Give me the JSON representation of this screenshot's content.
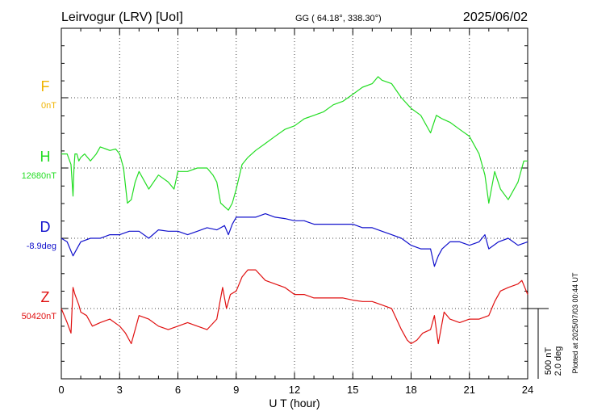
{
  "header": {
    "station": "Leirvogur (LRV)  [UoI]",
    "coords": "GG ( 64.18°, 338.30°)",
    "date": "2025/06/02"
  },
  "side_note": "Plotted at 2025/07/03 00:44 UT",
  "scale_bar": {
    "nt": "500 nT",
    "deg": "2.0 deg"
  },
  "chart_data": {
    "type": "line",
    "xlabel": "U T (hour)",
    "xlim": [
      0,
      24
    ],
    "xticks": [
      "0",
      "3",
      "6",
      "9",
      "12",
      "15",
      "18",
      "21",
      "24"
    ],
    "grid": true,
    "scale": {
      "nT_per_bar": 500,
      "deg_per_bar": 2.0
    },
    "series": [
      {
        "name": "F",
        "baseline_label": "0nT",
        "color": "#f0b400",
        "x": [],
        "y": []
      },
      {
        "name": "H",
        "baseline_label": "12680nT",
        "color": "#22dd22",
        "x": [
          0,
          0.3,
          0.5,
          0.6,
          0.65,
          0.7,
          0.8,
          0.9,
          1.0,
          1.2,
          1.5,
          1.8,
          2.0,
          2.3,
          2.5,
          2.8,
          3.0,
          3.2,
          3.4,
          3.6,
          3.8,
          4.0,
          4.5,
          5.0,
          5.5,
          5.8,
          6.0,
          6.5,
          7.0,
          7.5,
          7.8,
          8.0,
          8.2,
          8.4,
          8.6,
          8.8,
          9.0,
          9.3,
          9.6,
          10.0,
          10.5,
          11.0,
          11.5,
          12.0,
          12.5,
          13.0,
          13.5,
          14.0,
          14.5,
          15.0,
          15.5,
          16.0,
          16.3,
          16.5,
          17.0,
          17.5,
          18.0,
          18.5,
          19.0,
          19.3,
          19.6,
          20.0,
          20.5,
          21.0,
          21.5,
          21.8,
          22.0,
          22.3,
          22.6,
          23.0,
          23.5,
          23.8,
          24.0
        ],
        "y": [
          20,
          20,
          5,
          -40,
          0,
          20,
          20,
          10,
          15,
          20,
          10,
          20,
          30,
          27,
          25,
          27,
          20,
          0,
          -50,
          -45,
          -20,
          -5,
          -30,
          -10,
          -20,
          -30,
          -5,
          -5,
          0,
          0,
          -10,
          -20,
          -50,
          -55,
          -60,
          -50,
          -30,
          5,
          15,
          25,
          35,
          45,
          55,
          60,
          70,
          75,
          80,
          90,
          95,
          105,
          115,
          120,
          130,
          125,
          120,
          100,
          85,
          75,
          50,
          75,
          70,
          65,
          55,
          45,
          20,
          -10,
          -50,
          -5,
          -30,
          -45,
          -20,
          10,
          10
        ]
      },
      {
        "name": "D",
        "baseline_label": "-8.9deg",
        "color": "#1010cc",
        "x": [
          0,
          0.3,
          0.6,
          0.8,
          1.0,
          1.5,
          2.0,
          2.5,
          3.0,
          3.5,
          4.0,
          4.5,
          5.0,
          5.5,
          6.0,
          6.5,
          7.0,
          7.5,
          8.0,
          8.4,
          8.6,
          8.8,
          9.0,
          9.5,
          10.0,
          10.5,
          11.0,
          11.5,
          12.0,
          12.5,
          13.0,
          13.5,
          14.0,
          14.5,
          15.0,
          15.5,
          16.0,
          16.5,
          17.0,
          17.5,
          18.0,
          18.5,
          19.0,
          19.2,
          19.4,
          19.6,
          20.0,
          20.5,
          21.0,
          21.5,
          21.8,
          22.0,
          22.5,
          23.0,
          23.5,
          24.0
        ],
        "y": [
          0,
          -5,
          -25,
          -15,
          -5,
          0,
          0,
          5,
          5,
          10,
          10,
          0,
          12,
          10,
          10,
          5,
          10,
          15,
          12,
          18,
          5,
          20,
          30,
          30,
          30,
          35,
          30,
          28,
          25,
          25,
          20,
          20,
          20,
          20,
          20,
          15,
          15,
          10,
          5,
          0,
          -10,
          -15,
          -15,
          -40,
          -25,
          -15,
          -5,
          -5,
          -10,
          -5,
          5,
          -15,
          -5,
          0,
          -10,
          -5
        ]
      },
      {
        "name": "Z",
        "baseline_label": "50420nT",
        "color": "#e01010",
        "x": [
          0,
          0.3,
          0.5,
          0.6,
          0.7,
          0.9,
          1.0,
          1.3,
          1.6,
          2.0,
          2.5,
          3.0,
          3.3,
          3.6,
          4.0,
          4.5,
          5.0,
          5.5,
          6.0,
          6.5,
          7.0,
          7.5,
          8.0,
          8.3,
          8.5,
          8.7,
          9.0,
          9.3,
          9.6,
          10.0,
          10.5,
          11.0,
          11.5,
          12.0,
          12.5,
          13.0,
          13.5,
          14.0,
          14.5,
          15.0,
          15.5,
          16.0,
          16.5,
          17.0,
          17.5,
          17.8,
          18.0,
          18.3,
          18.6,
          19.0,
          19.2,
          19.4,
          19.7,
          20.0,
          20.5,
          21.0,
          21.5,
          22.0,
          22.3,
          22.6,
          23.0,
          23.5,
          23.7,
          24.0
        ],
        "y": [
          0,
          -20,
          -35,
          30,
          20,
          5,
          -5,
          -10,
          -25,
          -20,
          -15,
          -25,
          -35,
          -50,
          -10,
          -15,
          -25,
          -30,
          -25,
          -20,
          -25,
          -30,
          -15,
          30,
          0,
          20,
          25,
          45,
          55,
          55,
          40,
          35,
          30,
          20,
          20,
          15,
          15,
          15,
          15,
          12,
          10,
          10,
          5,
          0,
          -30,
          -45,
          -50,
          -45,
          -35,
          -30,
          -10,
          -50,
          -5,
          -15,
          -20,
          -15,
          -15,
          -10,
          10,
          25,
          30,
          35,
          40,
          20
        ]
      }
    ]
  }
}
